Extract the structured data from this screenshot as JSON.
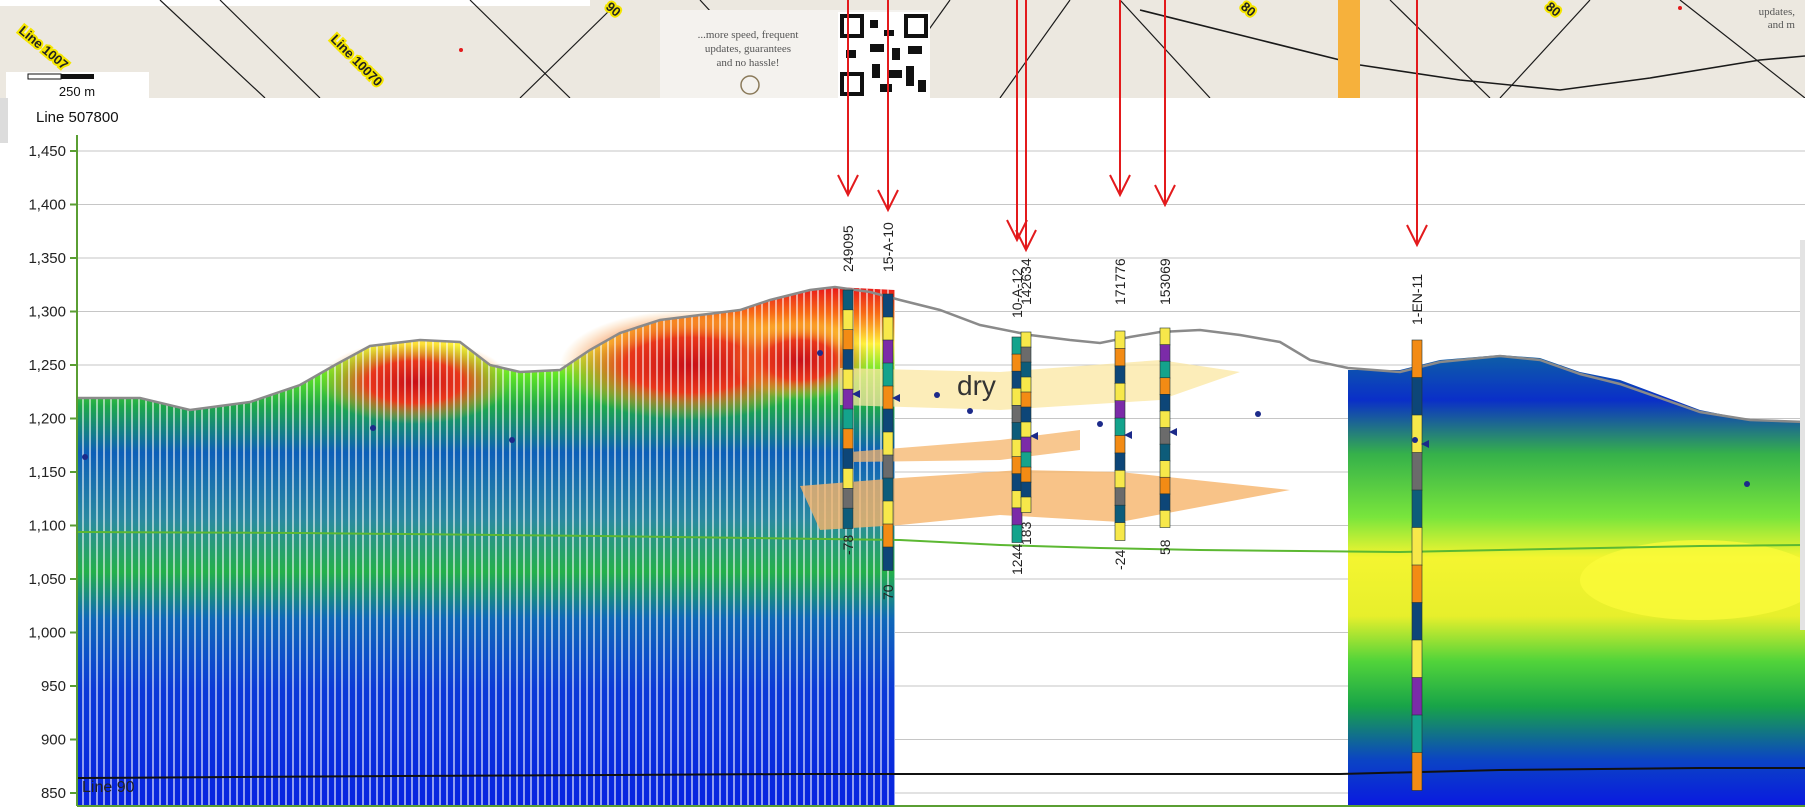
{
  "map": {
    "line_labels": [
      "Line 10070",
      "Line 1007",
      "90",
      "80",
      "80"
    ],
    "scale_bar_label": "250 m",
    "ad_text": [
      "...more speed, frequent",
      "updates, guarantees",
      "and no hassle!"
    ],
    "right_ad_text": [
      "updates,",
      "and m"
    ]
  },
  "section": {
    "title": "Line 507800",
    "y_ticks": [
      "1,450",
      "1,400",
      "1,350",
      "1,300",
      "1,250",
      "1,200",
      "1,150",
      "1,100",
      "1,050",
      "1,000",
      "950",
      "900",
      "850"
    ],
    "annotation_dry": "dry",
    "bottom_label": "Line 90",
    "wells": [
      {
        "id": "249095",
        "bottom_value": "-78"
      },
      {
        "id": "15-A-10",
        "bottom_value": "70"
      },
      {
        "id": "10-A-12",
        "bottom_value": "1244"
      },
      {
        "id": "142634",
        "bottom_value": "183"
      },
      {
        "id": "171776",
        "bottom_value": "-24"
      },
      {
        "id": "153069",
        "bottom_value": "58"
      },
      {
        "id": "1-EN-11",
        "bottom_value": ""
      }
    ]
  },
  "colors": {
    "arrow": "#e31a1c",
    "terrain": "#8a8a8a",
    "water_table": "#5cb832",
    "axis": "#5a9e33",
    "dry_zone": "#fbe7a1",
    "wet_zone": "#f6b46a",
    "map_bg": "#ece8e0",
    "road_orange": "#f6b13c"
  }
}
